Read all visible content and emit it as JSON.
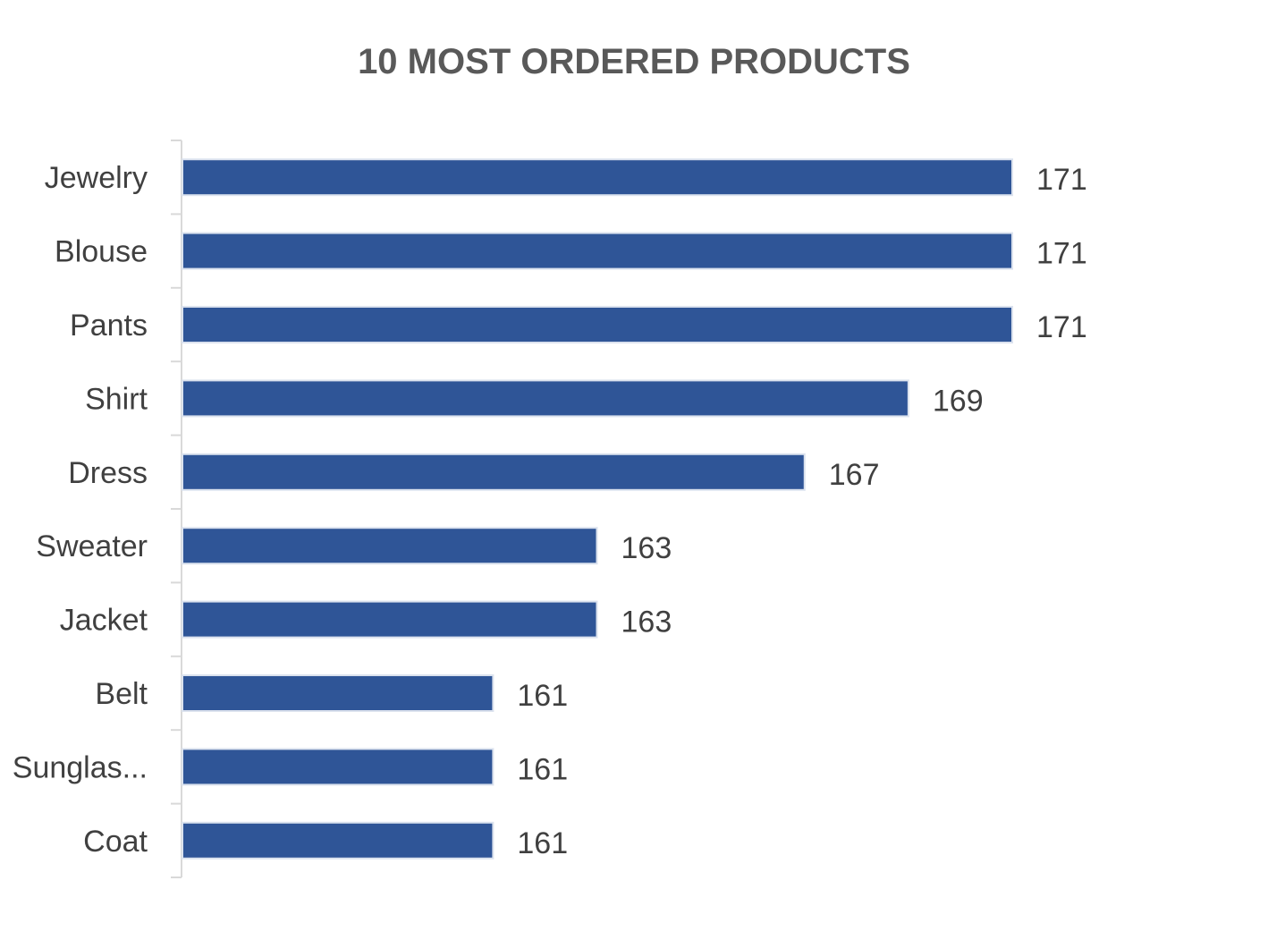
{
  "chart_data": {
    "type": "bar",
    "orientation": "horizontal",
    "title": "10 MOST ORDERED PRODUCTS",
    "categories": [
      "Jewelry",
      "Blouse",
      "Pants",
      "Shirt",
      "Dress",
      "Sweater",
      "Jacket",
      "Belt",
      "Sunglas...",
      "Coat"
    ],
    "values": [
      171,
      171,
      171,
      169,
      167,
      163,
      163,
      161,
      161,
      161
    ],
    "value_axis_min": 155,
    "value_axis_max": 173,
    "data_labels": true,
    "legend": "none",
    "grid": false,
    "bar_color": "#2f5597"
  }
}
